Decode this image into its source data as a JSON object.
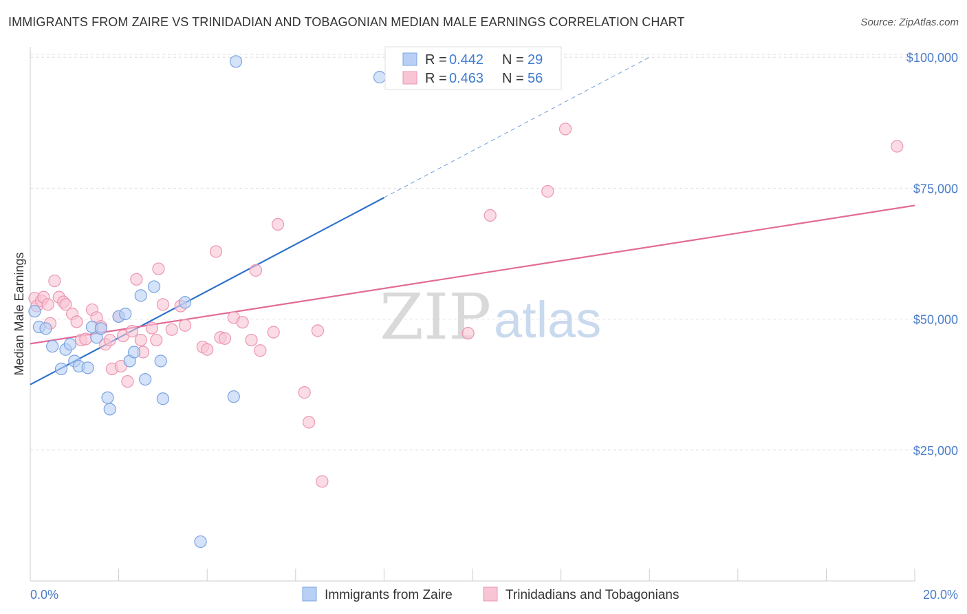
{
  "title": "IMMIGRANTS FROM ZAIRE VS TRINIDADIAN AND TOBAGONIAN MEDIAN MALE EARNINGS CORRELATION CHART",
  "source": "Source: ZipAtlas.com",
  "watermark": {
    "zip": "ZIP",
    "atlas": "atlas"
  },
  "legend_box": {
    "rows": [
      {
        "r_label": "R =",
        "r_value": "0.442",
        "n_label": "N =",
        "n_value": "29"
      },
      {
        "r_label": "R =",
        "r_value": "0.463",
        "n_label": "N =",
        "n_value": "56"
      }
    ]
  },
  "bottom_legend": [
    "Immigrants from Zaire",
    "Trinidadians and Tobagonians"
  ],
  "colors": {
    "blue_fill": "#b8d0f5",
    "blue_stroke": "#7aa3e0",
    "blue_line": "#2f72cc",
    "pink_fill": "#f8c5d4",
    "pink_stroke": "#ec95b1",
    "pink_line": "#e26a97",
    "tick_text": "#4a7cc9",
    "grid": "#dddddd"
  },
  "chart_data": {
    "type": "scatter",
    "title": "IMMIGRANTS FROM ZAIRE VS TRINIDADIAN AND TOBAGONIAN MEDIAN MALE EARNINGS CORRELATION CHART",
    "xlabel": "",
    "ylabel": "Median Male Earnings",
    "xlim": [
      0,
      20
    ],
    "ylim": [
      0,
      102000
    ],
    "x_tick_labels": [
      "0.0%",
      "20.0%"
    ],
    "y_ticks": [
      25000,
      50000,
      75000,
      100000
    ],
    "y_tick_labels": [
      "$25,000",
      "$50,000",
      "$75,000",
      "$100,000"
    ],
    "grid": true,
    "legend_position": "top-center",
    "series": [
      {
        "name": "Immigrants from Zaire",
        "r": 0.442,
        "n": 29,
        "trend": {
          "x0": 0,
          "y0": 37500,
          "x1": 8.0,
          "y1": 73200,
          "dash_to_x": 14.0,
          "dash_to_y": 100000
        },
        "points": [
          [
            0.1,
            51500
          ],
          [
            0.2,
            48500
          ],
          [
            0.35,
            48200
          ],
          [
            0.5,
            44800
          ],
          [
            0.7,
            40500
          ],
          [
            0.8,
            44200
          ],
          [
            0.9,
            45200
          ],
          [
            1.0,
            42000
          ],
          [
            1.1,
            41000
          ],
          [
            1.3,
            40700
          ],
          [
            1.4,
            48500
          ],
          [
            1.5,
            46500
          ],
          [
            1.6,
            48200
          ],
          [
            1.75,
            35000
          ],
          [
            1.8,
            32800
          ],
          [
            2.0,
            50500
          ],
          [
            2.15,
            51000
          ],
          [
            2.25,
            42000
          ],
          [
            2.35,
            43700
          ],
          [
            2.5,
            54500
          ],
          [
            2.6,
            38500
          ],
          [
            2.8,
            56200
          ],
          [
            2.95,
            42000
          ],
          [
            3.0,
            34800
          ],
          [
            3.5,
            53200
          ],
          [
            3.85,
            7500
          ],
          [
            4.6,
            35200
          ],
          [
            4.65,
            99200
          ],
          [
            7.9,
            96200
          ]
        ]
      },
      {
        "name": "Trinidadians and Tobagonians",
        "r": 0.463,
        "n": 56,
        "trend": {
          "x0": 0,
          "y0": 45300,
          "x1": 20,
          "y1": 71700
        },
        "points": [
          [
            0.1,
            54000
          ],
          [
            0.15,
            52500
          ],
          [
            0.25,
            53500
          ],
          [
            0.3,
            54200
          ],
          [
            0.4,
            52800
          ],
          [
            0.45,
            49200
          ],
          [
            0.55,
            57300
          ],
          [
            0.65,
            54200
          ],
          [
            0.75,
            53300
          ],
          [
            0.8,
            52800
          ],
          [
            0.95,
            51000
          ],
          [
            1.05,
            49500
          ],
          [
            1.15,
            46000
          ],
          [
            1.25,
            46200
          ],
          [
            1.4,
            51800
          ],
          [
            1.5,
            50300
          ],
          [
            1.6,
            48600
          ],
          [
            1.7,
            45200
          ],
          [
            1.8,
            46000
          ],
          [
            1.85,
            40500
          ],
          [
            2.0,
            50500
          ],
          [
            2.05,
            41000
          ],
          [
            2.1,
            46800
          ],
          [
            2.2,
            38100
          ],
          [
            2.3,
            47700
          ],
          [
            2.4,
            57600
          ],
          [
            2.5,
            46000
          ],
          [
            2.55,
            43700
          ],
          [
            2.75,
            48300
          ],
          [
            2.85,
            46000
          ],
          [
            2.9,
            59600
          ],
          [
            3.0,
            52800
          ],
          [
            3.2,
            48000
          ],
          [
            3.4,
            52500
          ],
          [
            3.5,
            48800
          ],
          [
            3.9,
            44700
          ],
          [
            4.0,
            44200
          ],
          [
            4.2,
            62900
          ],
          [
            4.3,
            46500
          ],
          [
            4.4,
            46300
          ],
          [
            4.6,
            50300
          ],
          [
            4.8,
            49400
          ],
          [
            5.0,
            46000
          ],
          [
            5.1,
            59300
          ],
          [
            5.2,
            44000
          ],
          [
            5.5,
            47500
          ],
          [
            5.6,
            68100
          ],
          [
            6.2,
            36000
          ],
          [
            6.3,
            30300
          ],
          [
            6.5,
            47800
          ],
          [
            6.6,
            19000
          ],
          [
            9.9,
            47300
          ],
          [
            10.4,
            69800
          ],
          [
            11.7,
            74400
          ],
          [
            12.1,
            86300
          ],
          [
            19.6,
            83000
          ]
        ]
      }
    ]
  }
}
